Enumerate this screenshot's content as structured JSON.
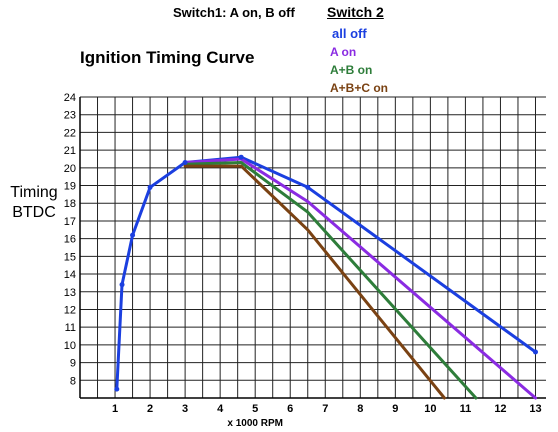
{
  "header": {
    "switch1_label": "Switch1: A on, B off",
    "switch2_title": "Switch 2"
  },
  "chart_data": {
    "type": "line",
    "title": "Ignition Timing Curve",
    "xlabel": "x 1000 RPM",
    "ylabel_line1": "Timing",
    "ylabel_line2": "BTDC",
    "xlim": [
      0,
      13.3
    ],
    "ylim": [
      7,
      24
    ],
    "xticks": [
      1,
      2,
      3,
      4,
      5,
      6,
      7,
      8,
      9,
      10,
      11,
      12,
      13
    ],
    "yticks": [
      8,
      9,
      10,
      11,
      12,
      13,
      14,
      15,
      16,
      17,
      18,
      19,
      20,
      21,
      22,
      23,
      24
    ],
    "grid": true,
    "legend_position": "top-right",
    "series": [
      {
        "name": "all off",
        "color": "#1b3fe0",
        "points": [
          [
            1.05,
            7.5
          ],
          [
            1.2,
            13.4
          ],
          [
            1.5,
            16.2
          ],
          [
            2.0,
            18.9
          ],
          [
            3.0,
            20.3
          ],
          [
            4.6,
            20.6
          ],
          [
            6.5,
            18.9
          ],
          [
            13.0,
            9.6
          ]
        ]
      },
      {
        "name": "A on",
        "color": "#8a2be2",
        "points": [
          [
            3.0,
            20.3
          ],
          [
            4.6,
            20.5
          ],
          [
            6.5,
            18.1
          ],
          [
            13.0,
            7.0
          ]
        ]
      },
      {
        "name": "A+B on",
        "color": "#2e7d3a",
        "points": [
          [
            3.0,
            20.2
          ],
          [
            4.6,
            20.3
          ],
          [
            6.5,
            17.5
          ],
          [
            11.3,
            7.0
          ]
        ]
      },
      {
        "name": "A+B+C on",
        "color": "#7a4213",
        "points": [
          [
            3.0,
            20.1
          ],
          [
            4.6,
            20.1
          ],
          [
            6.5,
            16.5
          ],
          [
            10.4,
            7.0
          ]
        ]
      }
    ]
  }
}
